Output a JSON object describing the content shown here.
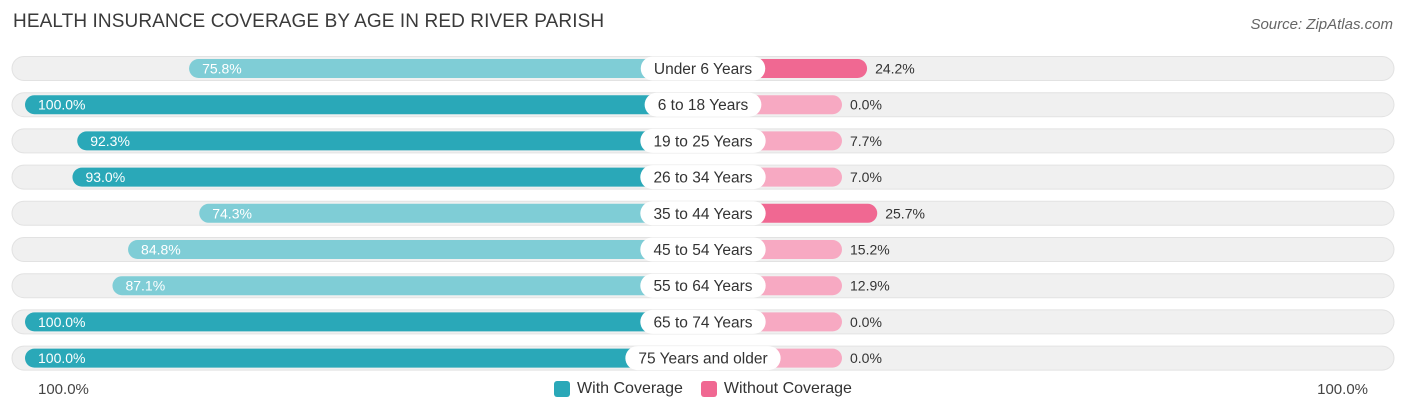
{
  "header": {
    "title": "HEALTH INSURANCE COVERAGE BY AGE IN RED RIVER PARISH",
    "source": "Source: ZipAtlas.com"
  },
  "axis": {
    "left_label": "100.0%",
    "right_label": "100.0%"
  },
  "legend": {
    "with_label": "With Coverage",
    "without_label": "Without Coverage"
  },
  "colors": {
    "with_dark": "#2aa8b8",
    "with_light": "#7fcdd6",
    "without_dark": "#f06892",
    "without_light": "#f7a9c2",
    "track": "#f0f0f0"
  },
  "chart_data": {
    "type": "bar",
    "orientation": "horizontal-diverging",
    "title": "HEALTH INSURANCE COVERAGE BY AGE IN RED RIVER PARISH",
    "categories": [
      "Under 6 Years",
      "6 to 18 Years",
      "19 to 25 Years",
      "26 to 34 Years",
      "35 to 44 Years",
      "45 to 54 Years",
      "55 to 64 Years",
      "65 to 74 Years",
      "75 Years and older"
    ],
    "series": [
      {
        "name": "With Coverage",
        "values": [
          75.8,
          100.0,
          92.3,
          93.0,
          74.3,
          84.8,
          87.1,
          100.0,
          100.0
        ],
        "labels": [
          "75.8%",
          "100.0%",
          "92.3%",
          "93.0%",
          "74.3%",
          "84.8%",
          "87.1%",
          "100.0%",
          "100.0%"
        ]
      },
      {
        "name": "Without Coverage",
        "values": [
          24.2,
          0.0,
          7.7,
          7.0,
          25.7,
          15.2,
          12.9,
          0.0,
          0.0
        ],
        "labels": [
          "24.2%",
          "0.0%",
          "7.7%",
          "7.0%",
          "25.7%",
          "15.2%",
          "12.9%",
          "0.0%",
          "0.0%"
        ]
      }
    ],
    "xlim": [
      0,
      100
    ],
    "legend_position": "bottom-center"
  }
}
